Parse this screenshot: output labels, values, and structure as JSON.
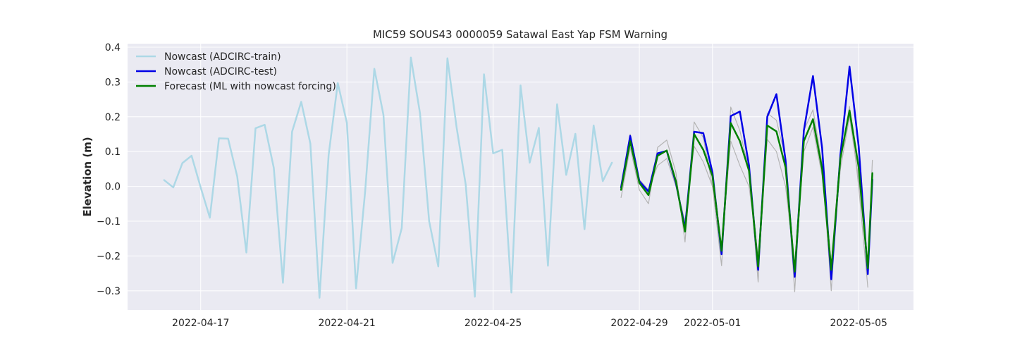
{
  "chart_data": {
    "type": "line",
    "title": "MIC59 SOUS43 0000059 Satawal East Yap FSM Warning",
    "xlabel": "",
    "ylabel": "Elevation (m)",
    "xlim": [
      "2022-04-15T00:00",
      "2022-05-06T12:00"
    ],
    "ylim": [
      -0.355,
      0.41
    ],
    "x_ticks": [
      "2022-04-17",
      "2022-04-21",
      "2022-04-25",
      "2022-04-29",
      "2022-05-01",
      "2022-05-05"
    ],
    "y_ticks": [
      -0.3,
      -0.2,
      -0.1,
      0.0,
      0.1,
      0.2,
      0.3,
      0.4
    ],
    "y_tick_labels": [
      "−0.3",
      "−0.2",
      "−0.1",
      "0.0",
      "0.1",
      "0.2",
      "0.3",
      "0.4"
    ],
    "grid": true,
    "legend_position": "upper-left",
    "background_color": "#eaeaf2",
    "series": [
      {
        "name": "Nowcast (ADCIRC-train)",
        "color": "#add8e6",
        "linewidth": 2.5,
        "in_legend": true,
        "x": [
          "2022-04-16T00:00",
          "2022-04-16T06:00",
          "2022-04-16T12:00",
          "2022-04-16T18:00",
          "2022-04-17T00:00",
          "2022-04-17T06:00",
          "2022-04-17T12:00",
          "2022-04-17T18:00",
          "2022-04-18T00:00",
          "2022-04-18T06:00",
          "2022-04-18T12:00",
          "2022-04-18T18:00",
          "2022-04-19T00:00",
          "2022-04-19T06:00",
          "2022-04-19T12:00",
          "2022-04-19T18:00",
          "2022-04-20T00:00",
          "2022-04-20T06:00",
          "2022-04-20T12:00",
          "2022-04-20T18:00",
          "2022-04-21T00:00",
          "2022-04-21T06:00",
          "2022-04-21T12:00",
          "2022-04-21T18:00",
          "2022-04-22T00:00",
          "2022-04-22T06:00",
          "2022-04-22T12:00",
          "2022-04-22T18:00",
          "2022-04-23T00:00",
          "2022-04-23T06:00",
          "2022-04-23T12:00",
          "2022-04-23T18:00",
          "2022-04-24T00:00",
          "2022-04-24T06:00",
          "2022-04-24T12:00",
          "2022-04-24T18:00",
          "2022-04-25T00:00",
          "2022-04-25T06:00",
          "2022-04-25T12:00",
          "2022-04-25T18:00",
          "2022-04-26T00:00",
          "2022-04-26T06:00",
          "2022-04-26T12:00",
          "2022-04-26T18:00",
          "2022-04-27T00:00",
          "2022-04-27T06:00",
          "2022-04-27T12:00",
          "2022-04-27T18:00",
          "2022-04-28T00:00",
          "2022-04-28T06:00"
        ],
        "y": [
          0.018,
          -0.003,
          0.067,
          0.088,
          -0.003,
          -0.09,
          0.138,
          0.137,
          0.028,
          -0.19,
          0.167,
          0.177,
          0.053,
          -0.277,
          0.157,
          0.243,
          0.123,
          -0.32,
          0.09,
          0.297,
          0.182,
          -0.293,
          -0.013,
          0.338,
          0.205,
          -0.22,
          -0.12,
          0.37,
          0.21,
          -0.1,
          -0.23,
          0.368,
          0.17,
          0.005,
          -0.317,
          0.322,
          0.095,
          0.105,
          -0.305,
          0.29,
          0.068,
          0.168,
          -0.228,
          0.236,
          0.033,
          0.151,
          -0.123,
          0.175,
          0.015,
          0.068
        ]
      },
      {
        "name": "",
        "color": "#b4b4b4",
        "linewidth": 1.2,
        "in_legend": false,
        "x": [
          "2022-04-28T12:00",
          "2022-04-28T18:00",
          "2022-04-29T00:00",
          "2022-04-29T06:00",
          "2022-04-29T12:00",
          "2022-04-29T18:00",
          "2022-04-30T00:00",
          "2022-04-30T06:00",
          "2022-04-30T12:00",
          "2022-04-30T18:00",
          "2022-05-01T00:00",
          "2022-05-01T06:00",
          "2022-05-01T12:00",
          "2022-05-01T18:00",
          "2022-05-02T00:00",
          "2022-05-02T06:00",
          "2022-05-02T12:00",
          "2022-05-02T18:00",
          "2022-05-03T00:00",
          "2022-05-03T06:00",
          "2022-05-03T12:00",
          "2022-05-03T18:00",
          "2022-05-04T00:00",
          "2022-05-04T06:00",
          "2022-05-04T12:00",
          "2022-05-04T18:00",
          "2022-05-05T00:00",
          "2022-05-05T06:00"
        ],
        "y": [
          -0.032,
          0.112,
          -0.01,
          -0.05,
          0.112,
          0.133,
          0.04,
          -0.16,
          0.185,
          0.14,
          0.0,
          -0.228,
          0.228,
          0.16,
          0.045,
          -0.275,
          0.21,
          0.19,
          0.08,
          -0.303,
          0.16,
          0.22,
          0.065,
          -0.3,
          0.08,
          0.23,
          0.0,
          -0.29
        ]
      },
      {
        "name": "",
        "color": "#b4b4b4",
        "linewidth": 1.2,
        "in_legend": false,
        "x": [
          "2022-04-28T12:00",
          "2022-04-28T18:00",
          "2022-04-29T00:00",
          "2022-04-29T06:00",
          "2022-04-29T12:00",
          "2022-04-29T18:00",
          "2022-04-30T00:00",
          "2022-04-30T06:00",
          "2022-04-30T12:00",
          "2022-04-30T18:00",
          "2022-05-01T00:00",
          "2022-05-01T06:00",
          "2022-05-01T12:00",
          "2022-05-01T18:00",
          "2022-05-02T00:00",
          "2022-05-02T06:00",
          "2022-05-02T12:00",
          "2022-05-02T18:00",
          "2022-05-03T00:00",
          "2022-05-03T06:00",
          "2022-05-03T12:00",
          "2022-05-03T18:00",
          "2022-05-04T00:00",
          "2022-05-04T06:00",
          "2022-05-04T12:00",
          "2022-05-04T18:00",
          "2022-05-05T00:00",
          "2022-05-05T06:00",
          "2022-05-05T09:00"
        ],
        "y": [
          0.0,
          0.15,
          0.02,
          -0.01,
          0.06,
          0.08,
          0.0,
          -0.1,
          0.115,
          0.07,
          0.0,
          -0.17,
          0.13,
          0.06,
          0.0,
          -0.2,
          0.135,
          0.1,
          0.0,
          -0.23,
          0.1,
          0.17,
          0.03,
          -0.22,
          0.05,
          0.2,
          0.02,
          -0.23,
          0.075
        ]
      },
      {
        "name": "Nowcast (ADCIRC-test)",
        "color": "#0000e6",
        "linewidth": 2.5,
        "in_legend": true,
        "x": [
          "2022-04-28T12:00",
          "2022-04-28T18:00",
          "2022-04-29T00:00",
          "2022-04-29T06:00",
          "2022-04-29T12:00",
          "2022-04-29T18:00",
          "2022-04-30T00:00",
          "2022-04-30T06:00",
          "2022-04-30T12:00",
          "2022-04-30T18:00",
          "2022-05-01T00:00",
          "2022-05-01T06:00",
          "2022-05-01T12:00",
          "2022-05-01T18:00",
          "2022-05-02T00:00",
          "2022-05-02T06:00",
          "2022-05-02T12:00",
          "2022-05-02T18:00",
          "2022-05-03T00:00",
          "2022-05-03T06:00",
          "2022-05-03T12:00",
          "2022-05-03T18:00",
          "2022-05-04T00:00",
          "2022-05-04T06:00",
          "2022-05-04T12:00",
          "2022-05-04T18:00",
          "2022-05-05T00:00",
          "2022-05-05T06:00",
          "2022-05-05T09:00"
        ],
        "y": [
          -0.003,
          0.145,
          0.015,
          -0.015,
          0.095,
          0.102,
          0.01,
          -0.12,
          0.157,
          0.153,
          0.04,
          -0.195,
          0.202,
          0.215,
          0.06,
          -0.24,
          0.2,
          0.265,
          0.075,
          -0.26,
          0.16,
          0.317,
          0.11,
          -0.267,
          0.09,
          0.344,
          0.115,
          -0.252,
          0.02
        ]
      },
      {
        "name": "Forecast (ML with nowcast forcing)",
        "color": "#008000",
        "linewidth": 2.5,
        "in_legend": true,
        "x": [
          "2022-04-28T12:00",
          "2022-04-28T18:00",
          "2022-04-29T00:00",
          "2022-04-29T06:00",
          "2022-04-29T12:00",
          "2022-04-29T18:00",
          "2022-04-30T00:00",
          "2022-04-30T06:00",
          "2022-04-30T12:00",
          "2022-04-30T18:00",
          "2022-05-01T00:00",
          "2022-05-01T06:00",
          "2022-05-01T12:00",
          "2022-05-01T18:00",
          "2022-05-02T00:00",
          "2022-05-02T06:00",
          "2022-05-02T12:00",
          "2022-05-02T18:00",
          "2022-05-03T00:00",
          "2022-05-03T06:00",
          "2022-05-03T12:00",
          "2022-05-03T18:00",
          "2022-05-04T00:00",
          "2022-05-04T06:00",
          "2022-05-04T12:00",
          "2022-05-04T18:00",
          "2022-05-05T00:00",
          "2022-05-05T06:00",
          "2022-05-05T09:00"
        ],
        "y": [
          -0.01,
          0.13,
          0.01,
          -0.025,
          0.088,
          0.103,
          0.015,
          -0.13,
          0.15,
          0.105,
          0.03,
          -0.185,
          0.182,
          0.13,
          0.045,
          -0.23,
          0.175,
          0.158,
          0.055,
          -0.245,
          0.13,
          0.193,
          0.05,
          -0.24,
          0.08,
          0.218,
          0.055,
          -0.235,
          0.038
        ]
      }
    ]
  }
}
